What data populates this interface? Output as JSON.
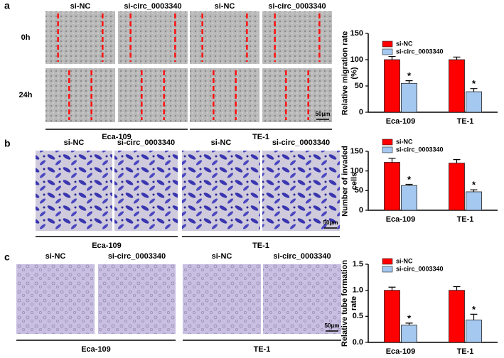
{
  "panels": [
    {
      "letter": "a",
      "columns": [
        "si-NC",
        "si-circ_0003340",
        "si-NC",
        "si-circ_0003340"
      ],
      "rows": [
        "0h",
        "24h"
      ],
      "groups": [
        "Eca-109",
        "TE-1"
      ],
      "scale": "50μm"
    },
    {
      "letter": "b",
      "columns": [
        "si-NC",
        "si-circ_0003340",
        "si-NC",
        "si-circ_0003340"
      ],
      "groups": [
        "Eca-109",
        "TE-1"
      ],
      "scale": "50μm"
    },
    {
      "letter": "c",
      "columns": [
        "si-NC",
        "si-circ_0003340",
        "si-NC",
        "si-circ_0003340"
      ],
      "groups": [
        "Eca-109",
        "TE-1"
      ],
      "scale": "50μm"
    }
  ],
  "chart_data": [
    {
      "type": "bar",
      "y_label": "Relative migration rate (%)",
      "categories": [
        "Eca-109",
        "TE-1"
      ],
      "ylim": [
        0,
        150
      ],
      "yticks": [
        0,
        50,
        100,
        150
      ],
      "series": [
        {
          "name": "si-NC",
          "color": "#ff0000",
          "values": [
            100,
            100
          ],
          "errors": [
            6,
            5
          ]
        },
        {
          "name": "si-circ_0003340",
          "color": "#a4c8f0",
          "values": [
            55,
            39
          ],
          "errors": [
            5,
            6
          ],
          "significance": [
            "*",
            "*"
          ]
        }
      ]
    },
    {
      "type": "bar",
      "y_label": "Number of invaded cells",
      "categories": [
        "Eca-109",
        "TE-1"
      ],
      "ylim": [
        0,
        150
      ],
      "yticks": [
        0,
        50,
        100,
        150
      ],
      "series": [
        {
          "name": "si-NC",
          "color": "#ff0000",
          "values": [
            122,
            120
          ],
          "errors": [
            10,
            9
          ]
        },
        {
          "name": "si-circ_0003340",
          "color": "#a4c8f0",
          "values": [
            63,
            47
          ],
          "errors": [
            3,
            5
          ],
          "significance": [
            "*",
            "*"
          ]
        }
      ]
    },
    {
      "type": "bar",
      "y_label": "Relative tube formation rate",
      "categories": [
        "Eca-109",
        "TE-1"
      ],
      "ylim": [
        0,
        1.5
      ],
      "yticks": [
        {
          "value": 0,
          "label": "0.0"
        },
        {
          "value": 0.5,
          "label": "0.5"
        },
        {
          "value": 1,
          "label": "1.0"
        },
        {
          "value": 1.5,
          "label": "1.5"
        }
      ],
      "series": [
        {
          "name": "si-NC",
          "color": "#ff0000",
          "values": [
            1,
            1
          ],
          "errors": [
            0.06,
            0.07
          ]
        },
        {
          "name": "si-circ_0003340",
          "color": "#a4c8f0",
          "values": [
            0.33,
            0.43
          ],
          "errors": [
            0.04,
            0.11
          ],
          "significance": [
            "*",
            "*"
          ]
        }
      ]
    }
  ]
}
